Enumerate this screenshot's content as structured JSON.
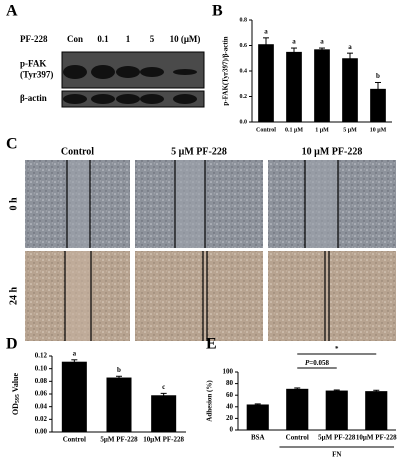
{
  "panel_a": {
    "label": "A",
    "treatment": "PF-228",
    "lanes": [
      "Con",
      "0.1",
      "1",
      "5",
      "10 (μM)"
    ],
    "blots": [
      {
        "label_lines": [
          "p-FAK",
          "(Tyr397)"
        ]
      },
      {
        "label_lines": [
          "β-actin"
        ]
      }
    ]
  },
  "panel_c": {
    "label": "C",
    "columns": [
      "Control",
      "5 μM PF-228",
      "10 μM PF-228"
    ],
    "rows": [
      "0 h",
      "24 h"
    ]
  },
  "chart_data": [
    {
      "type": "bar",
      "panel": "B",
      "ylabel": "p-FAK(Tyr397)/β-actin",
      "categories": [
        "Control",
        "0.1 μM",
        "1 μM",
        "5 μM",
        "10 μM"
      ],
      "values": [
        0.61,
        0.55,
        0.57,
        0.5,
        0.26
      ],
      "errors": [
        0.05,
        0.03,
        0.01,
        0.04,
        0.05
      ],
      "letters": [
        "a",
        "a",
        "a",
        "a",
        "b"
      ],
      "color": "#000000",
      "ylim": [
        0,
        0.8
      ],
      "yticks": [
        {
          "value": 0,
          "label": "0.0"
        },
        0.2,
        0.4,
        0.6,
        0.8
      ]
    },
    {
      "type": "bar",
      "panel": "D",
      "ylabel": [
        "OD",
        "595",
        " Value"
      ],
      "categories": [
        "Control",
        "5μM PF-228",
        "10μM PF-228"
      ],
      "values": [
        0.111,
        0.086,
        0.058
      ],
      "errors": [
        0.003,
        0.002,
        0.003
      ],
      "letters": [
        "a",
        "b",
        "c"
      ],
      "color": "#000000",
      "ylim": [
        0,
        0.12
      ],
      "yticks": [
        {
          "value": 0,
          "label": "0.00"
        },
        0.02,
        0.04,
        0.06,
        0.08,
        {
          "value": 0.1,
          "label": "0.10"
        },
        0.12
      ]
    },
    {
      "type": "bar",
      "panel": "E",
      "ylabel": "Adhesion (%)",
      "categories": [
        "BSA",
        "Control",
        "5μM PF-228",
        "10μM PF-228"
      ],
      "values": [
        44,
        71,
        68,
        67
      ],
      "errors": [
        1,
        1.5,
        1,
        1.5
      ],
      "color": "#000000",
      "ylim": [
        0,
        100
      ],
      "yticks": [
        0,
        20,
        40,
        60,
        80,
        100
      ],
      "group_label": "FN",
      "comparisons": [
        {
          "label_parts": [
            "P",
            "=0.058"
          ]
        },
        {
          "label_parts": [
            "*"
          ]
        }
      ]
    }
  ]
}
